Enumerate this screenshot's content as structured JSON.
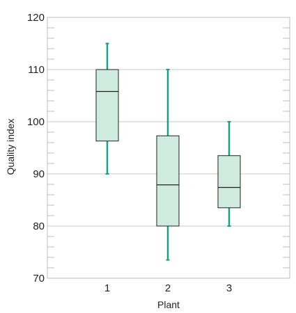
{
  "chart_data": {
    "type": "box",
    "xlabel": "Plant",
    "ylabel": "Quality index",
    "ylim": [
      70,
      120
    ],
    "y_ticks": [
      70,
      80,
      90,
      100,
      110,
      120
    ],
    "y_minor_step": 2,
    "grid": "horizontal-major",
    "categories": [
      "1",
      "2",
      "3"
    ],
    "boxes": [
      {
        "category": "1",
        "min": 90,
        "q1": 96.3,
        "median": 105.8,
        "q3": 110,
        "max": 115
      },
      {
        "category": "2",
        "min": 73.5,
        "q1": 80,
        "median": 87.9,
        "q3": 97.3,
        "max": 110
      },
      {
        "category": "3",
        "min": 80,
        "q1": 83.5,
        "median": 87.4,
        "q3": 93.5,
        "max": 100
      }
    ]
  },
  "colors": {
    "box_fill": "#cfeadf",
    "box_stroke": "#222222",
    "whisker": "#16a085",
    "grid": "#c8c8c8",
    "frame": "#bdbdbd"
  }
}
